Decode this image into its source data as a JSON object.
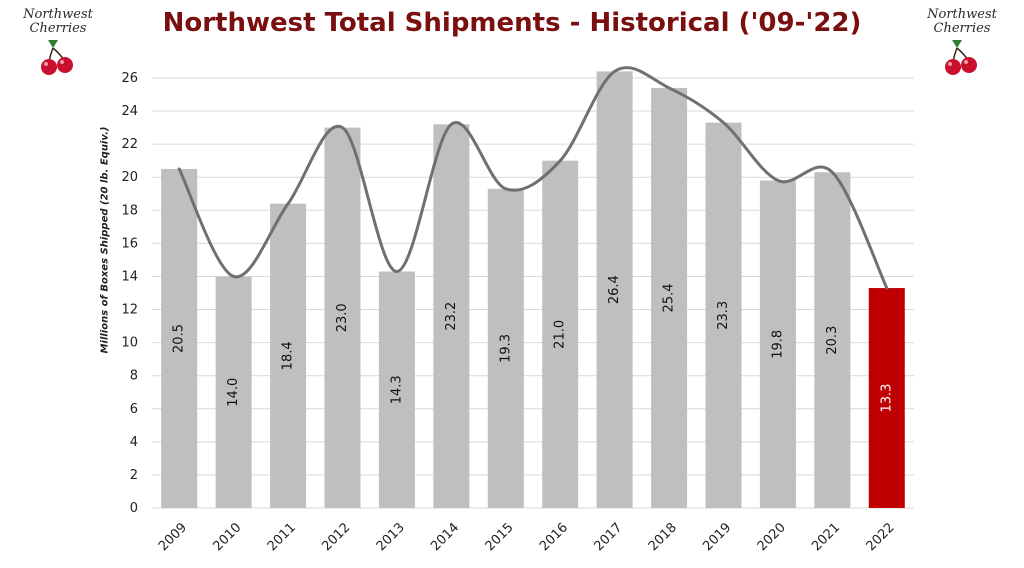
{
  "chart_data": {
    "type": "bar",
    "title": "Northwest Total Shipments - Historical ('09-'22)",
    "ylabel": "Millions of Boxes Shipped (20 lb. Equiv.)",
    "xlabel": "",
    "categories": [
      "2009",
      "2010",
      "2011",
      "2012",
      "2013",
      "2014",
      "2015",
      "2016",
      "2017",
      "2018",
      "2019",
      "2020",
      "2021",
      "2022"
    ],
    "series": [
      {
        "values": [
          20.5,
          14.0,
          18.4,
          23.0,
          14.3,
          23.2,
          19.3,
          21.0,
          26.4,
          25.4,
          23.3,
          19.8,
          20.3,
          13.3
        ],
        "data_labels": [
          "20.5",
          "14.0",
          "18.4",
          "23.0",
          "14.3",
          "23.2",
          "19.3",
          "21.0",
          "26.4",
          "25.4",
          "23.3",
          "19.8",
          "20.3",
          "13.3"
        ]
      }
    ],
    "trend_line": {
      "type": "smoothed-line",
      "color": "#707070"
    },
    "ylim": [
      0,
      26
    ],
    "yticks": [
      "0",
      "2",
      "4",
      "6",
      "8",
      "10",
      "12",
      "14",
      "16",
      "18",
      "20",
      "22",
      "24",
      "26"
    ],
    "grid": true,
    "colors": {
      "bar": "#bfbfbf",
      "highlight_bar": "#c00000",
      "line": "#707070",
      "title": "#7a0f0f"
    },
    "highlight_index": 13
  },
  "logos": {
    "left_text": "Northwest Cherries",
    "right_text": "Northwest Cherries"
  }
}
